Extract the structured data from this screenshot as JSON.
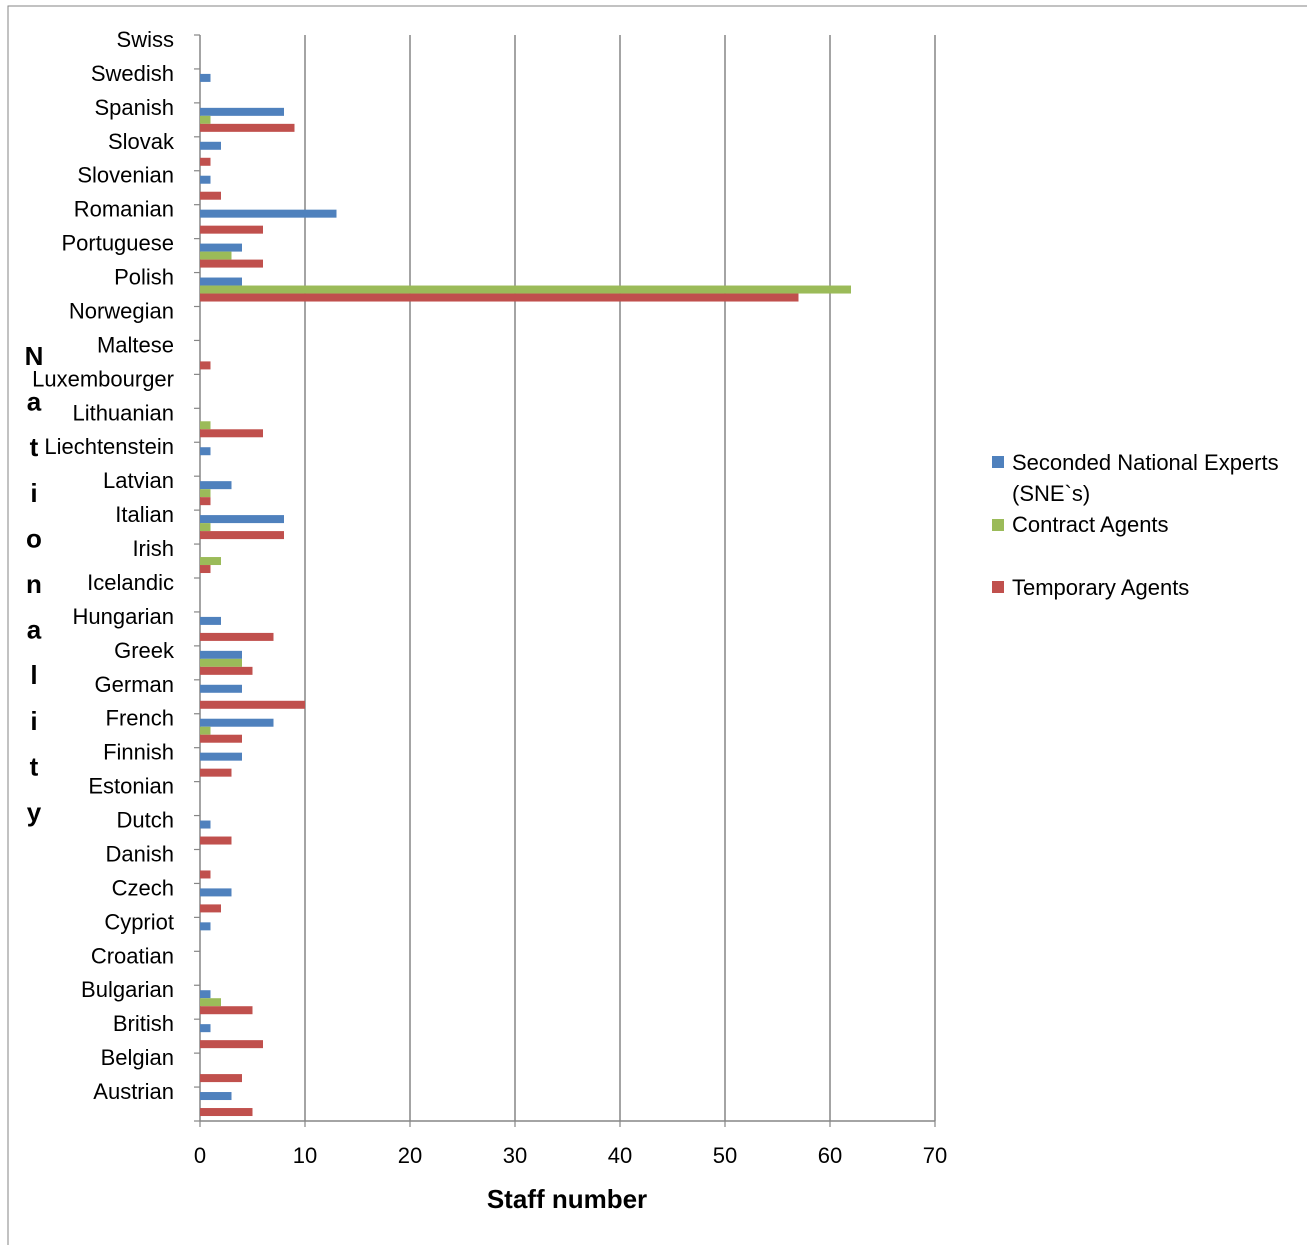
{
  "chart_data": {
    "type": "bar",
    "orientation": "horizontal",
    "title": "",
    "xlabel": "Staff number",
    "ylabel": "Nationality",
    "xlim": [
      0,
      70
    ],
    "xticks": [
      0,
      10,
      20,
      30,
      40,
      50,
      60,
      70
    ],
    "grid": true,
    "legend_position": "right",
    "categories": [
      "Austrian",
      "Belgian",
      "British",
      "Bulgarian",
      "Croatian",
      "Cypriot",
      "Czech",
      "Danish",
      "Dutch",
      "Estonian",
      "Finnish",
      "French",
      "German",
      "Greek",
      "Hungarian",
      "Icelandic",
      "Irish",
      "Italian",
      "Latvian",
      "Liechtenstein",
      "Lithuanian",
      "Luxembourger",
      "Maltese",
      "Norwegian",
      "Polish",
      "Portuguese",
      "Romanian",
      "Slovenian",
      "Slovak",
      "Spanish",
      "Swedish",
      "Swiss"
    ],
    "series": [
      {
        "name": "Seconded National Experts (SNE`s)",
        "color": "#4f81bd",
        "values": [
          3,
          0,
          1,
          1,
          0,
          1,
          3,
          0,
          1,
          0,
          4,
          7,
          4,
          4,
          2,
          0,
          0,
          8,
          3,
          1,
          0,
          0,
          0,
          0,
          4,
          4,
          13,
          1,
          2,
          8,
          1,
          0
        ]
      },
      {
        "name": "Contract Agents",
        "color": "#9bbb59",
        "values": [
          0,
          0,
          0,
          2,
          0,
          0,
          0,
          0,
          0,
          0,
          0,
          1,
          0,
          4,
          0,
          0,
          2,
          1,
          1,
          0,
          1,
          0,
          0,
          0,
          62,
          3,
          0,
          0,
          0,
          1,
          0,
          0
        ]
      },
      {
        "name": "Temporary Agents",
        "color": "#c0504d",
        "values": [
          5,
          4,
          6,
          5,
          0,
          0,
          2,
          1,
          3,
          0,
          3,
          4,
          10,
          5,
          7,
          0,
          1,
          8,
          1,
          0,
          6,
          0,
          1,
          0,
          57,
          6,
          6,
          2,
          1,
          9,
          0,
          0
        ]
      }
    ],
    "legend": {
      "sne_line1": "Seconded National Experts",
      "sne_line2": "(SNE`s)",
      "ca": "Contract Agents",
      "ta": "Temporary Agents"
    }
  }
}
